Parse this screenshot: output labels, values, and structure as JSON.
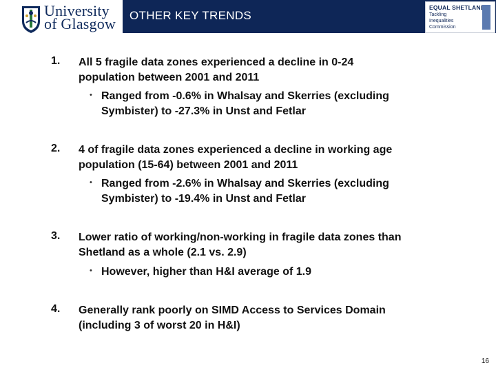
{
  "header": {
    "logo": {
      "line1": "University",
      "line2": "of Glasgow"
    },
    "title": "OTHER KEY TRENDS",
    "partner_logo": {
      "name": "EQUAL SHETLAND",
      "line1": "Tackling",
      "line2": "Inequalities",
      "line3": "Commission"
    }
  },
  "items": [
    {
      "number": "1.",
      "text_line1": "All 5 fragile data zones experienced a decline in 0-24",
      "text_line2": "population between 2001 and 2011",
      "bullet": "•",
      "sub_line1": "Ranged from -0.6% in Whalsay and Skerries (excluding",
      "sub_line2": "Symbister) to -27.3%  in Unst and Fetlar"
    },
    {
      "number": "2.",
      "text_line1": "4 of fragile data zones experienced a decline in working age",
      "text_line2": "population (15-64) between 2001 and 2011",
      "bullet": "•",
      "sub_line1": "Ranged from -2.6% in Whalsay and Skerries (excluding",
      "sub_line2": "Symbister) to -19.4% in Unst and Fetlar"
    },
    {
      "number": "3.",
      "text_line1": "Lower ratio of working/non-working in fragile data zones than",
      "text_line2": "Shetland as a whole (2.1 vs. 2.9)",
      "bullet": "•",
      "sub_line1": "However, higher than H&I average of 1.9"
    },
    {
      "number": "4.",
      "text_line1": "Generally rank poorly on SIMD Access to Services Domain",
      "text_line2": "(including 3 of worst 20 in H&I)"
    }
  ],
  "footer": {
    "page_number": "16"
  },
  "colors": {
    "title_bar": "#0e2657",
    "text": "#111111",
    "logo_text": "#0f2a5c"
  }
}
